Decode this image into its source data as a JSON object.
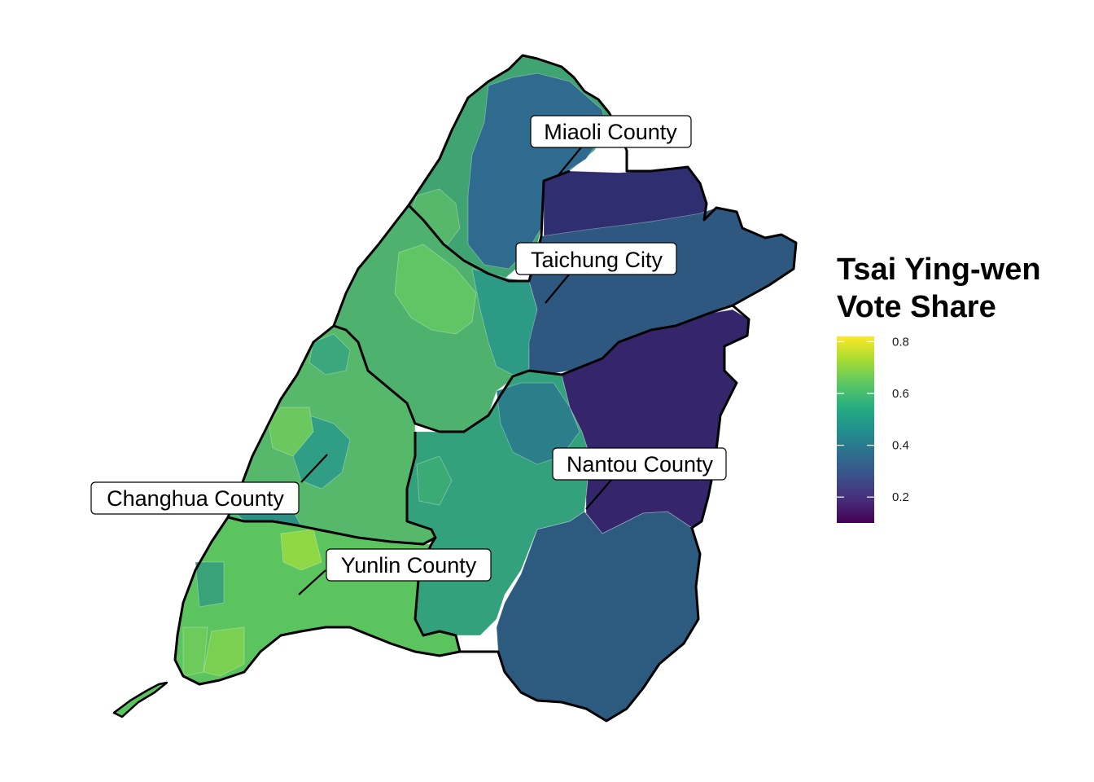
{
  "legend": {
    "title_line1": "Tsai Ying-wen",
    "title_line2": "Vote Share",
    "ticks": [
      "0.8",
      "0.6",
      "0.4",
      "0.2"
    ],
    "tick_values": [
      0.8,
      0.6,
      0.4,
      0.2
    ],
    "range": [
      0.1,
      0.82
    ]
  },
  "counties": {
    "miaoli": {
      "label": "Miaoli County"
    },
    "taichung": {
      "label": "Taichung City"
    },
    "changhua": {
      "label": "Changhua County"
    },
    "nantou": {
      "label": "Nantou County"
    },
    "yunlin": {
      "label": "Yunlin County"
    }
  },
  "colors": {
    "scale": [
      "#440154",
      "#3b528b",
      "#21908d",
      "#5dc963",
      "#fde725"
    ],
    "boundary": "#000000",
    "background": "#ffffff"
  }
}
